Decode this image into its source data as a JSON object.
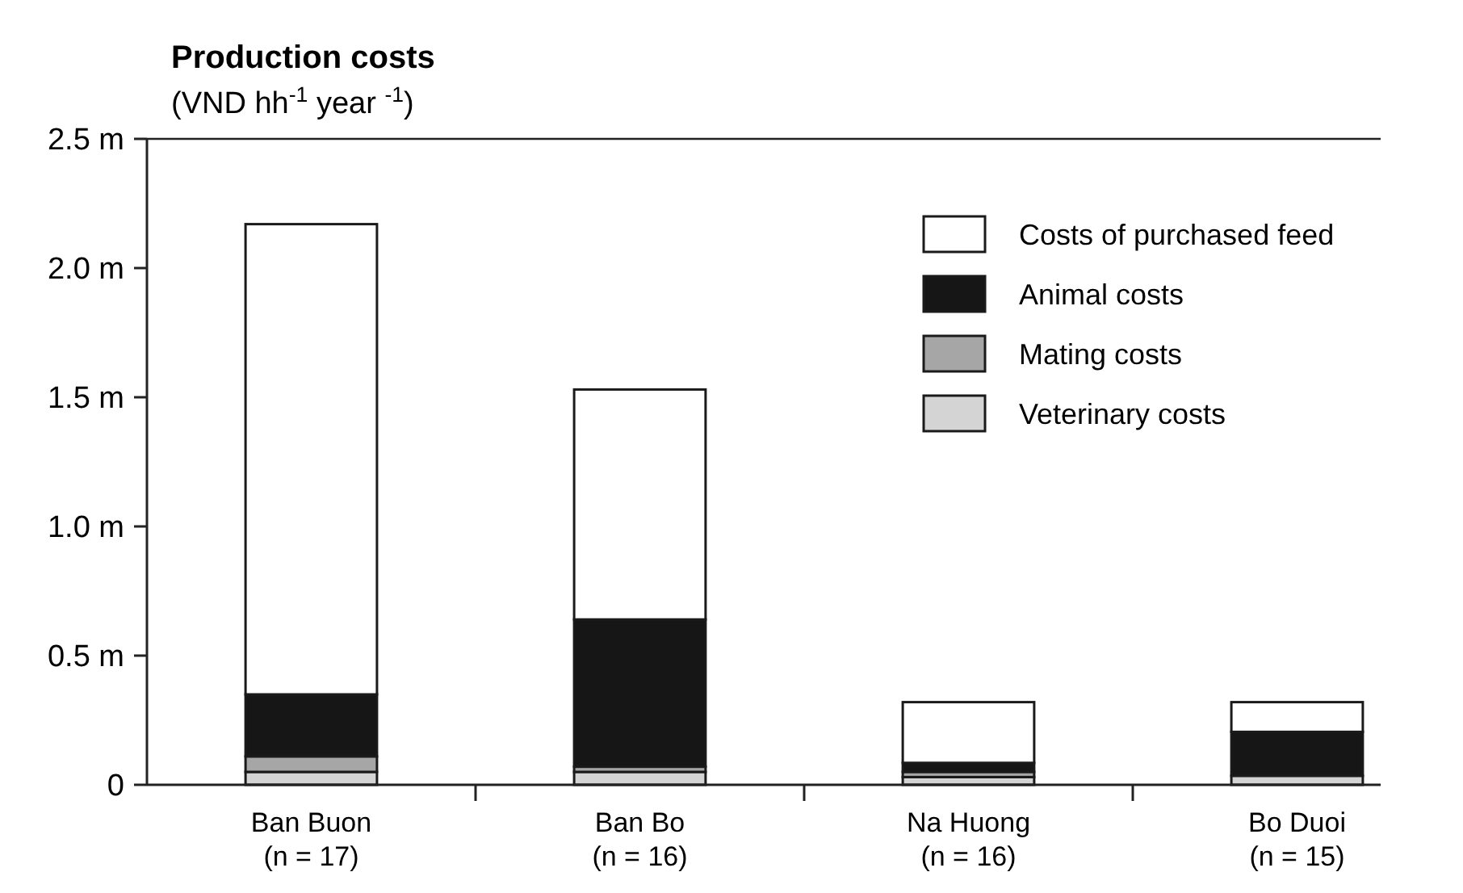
{
  "chart_data": {
    "type": "bar",
    "stacked": true,
    "title": "Production costs",
    "ylabel": "(VND hh$^{-1}$ year $^{-1}$)",
    "categories": [
      "Ban Buon\n(n = 17)",
      "Ban Bo\n(n = 16)",
      "Na Huong\n(n = 16)",
      "Bo Duoi\n(n = 15)"
    ],
    "series": [
      {
        "name": "Veterinary costs",
        "color": "#d4d4d4",
        "values": [
          0.05,
          0.05,
          0.03,
          0.035
        ]
      },
      {
        "name": "Mating costs",
        "color": "#a6a6a6",
        "values": [
          0.06,
          0.02,
          0.02,
          0
        ]
      },
      {
        "name": "Animal costs",
        "color": "#161616",
        "values": [
          0.24,
          0.57,
          0.035,
          0.17
        ]
      },
      {
        "name": "Costs of purchased feed",
        "color": "#ffffff",
        "values": [
          1.82,
          0.89,
          0.235,
          0.115
        ]
      }
    ],
    "ylim": [
      0,
      2.5
    ],
    "yticks": [
      0,
      {
        "value": 0.5,
        "label": "0.5 m"
      },
      {
        "value": 1,
        "label": "1.0 m"
      },
      {
        "value": 1.5,
        "label": "1.5 m"
      },
      {
        "value": 2,
        "label": "2.0 m"
      },
      {
        "value": 2.5,
        "label": "2.5 m"
      }
    ],
    "legend": "top right",
    "grid": false
  }
}
